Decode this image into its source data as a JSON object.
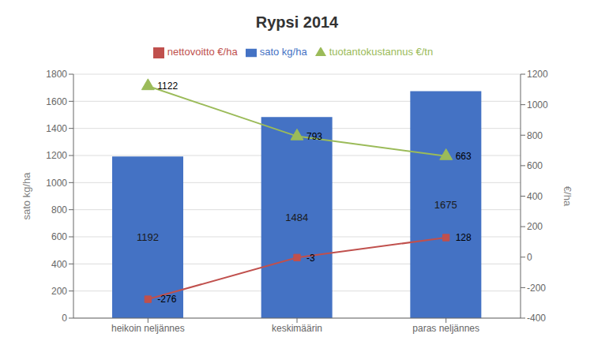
{
  "chart_data": {
    "type": "bar",
    "title": "Rypsi 2014",
    "categories": [
      "heikoin neljännes",
      "keskimäärin",
      "paras neljännes"
    ],
    "series": [
      {
        "name": "sato kg/ha",
        "type": "bar",
        "color": "#4472C4",
        "values": [
          1192,
          1484,
          1675
        ]
      },
      {
        "name": "nettovoitto €/ha",
        "type": "line",
        "color": "#C0504D",
        "marker": "square",
        "axis": "y2",
        "values": [
          -276,
          -3,
          128
        ]
      },
      {
        "name": "tuotantokustannus €/tn",
        "type": "line",
        "color": "#9BBB59",
        "marker": "triangle",
        "axis": "y2",
        "values": [
          1122,
          793,
          663
        ]
      }
    ],
    "ylabel": "sato kg/ha",
    "y2label": "€/ha",
    "ylim": [
      0,
      1800
    ],
    "yticks": [
      0,
      200,
      400,
      600,
      800,
      1000,
      1200,
      1400,
      1600,
      1800
    ],
    "y2lim": [
      -400,
      1200
    ],
    "y2ticks": [
      -400,
      -200,
      0,
      200,
      400,
      600,
      800,
      1000,
      1200
    ],
    "grid": true,
    "data_labels": true,
    "legend": "top"
  }
}
